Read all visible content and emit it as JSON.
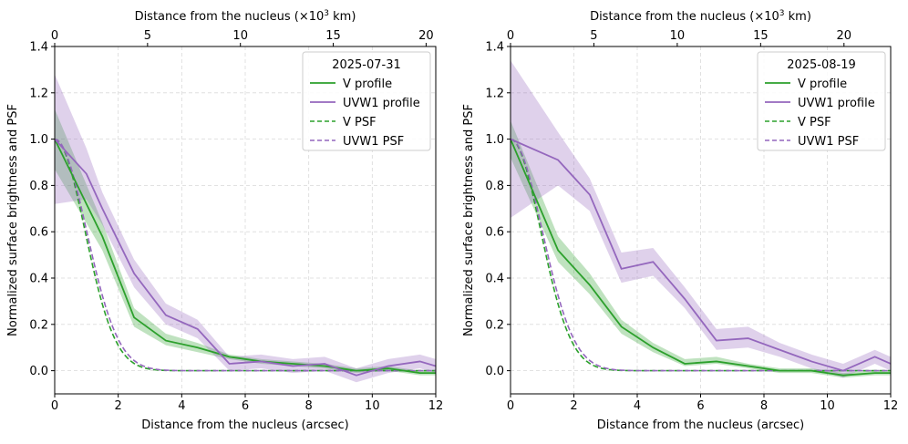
{
  "chart_data": [
    {
      "type": "line",
      "legend_title": "2025-07-31",
      "legend_position": "top-right",
      "xlabel": "Distance from the nucleus (arcsec)",
      "ylabel": "Normalized surface brightness and PSF",
      "top_xlabel_prefix": "Distance from the nucleus (×10",
      "top_xlabel_exp": "3",
      "top_xlabel_suffix": " km)",
      "xlim": [
        0,
        12
      ],
      "ylim": [
        -0.1,
        1.4
      ],
      "xticks": [
        0,
        2,
        4,
        6,
        8,
        10,
        12
      ],
      "yticks": [
        0.0,
        0.2,
        0.4,
        0.6,
        0.8,
        1.0,
        1.2,
        1.4
      ],
      "top_ticks_km": [
        0,
        5,
        10,
        15,
        20
      ],
      "km_per_arcsec": 1.71,
      "grid": true,
      "series": [
        {
          "name": "V profile",
          "style": "solid",
          "color": "#2ca02c",
          "x": [
            0,
            1.5,
            2.5,
            3.5,
            4.5,
            5.5,
            6.5,
            7.5,
            8.5,
            9.5,
            10.5,
            11.5,
            12
          ],
          "y": [
            1.0,
            0.58,
            0.23,
            0.13,
            0.1,
            0.06,
            0.04,
            0.03,
            0.02,
            0.0,
            0.01,
            -0.01,
            -0.01
          ],
          "lower": [
            0.87,
            0.52,
            0.19,
            0.11,
            0.08,
            0.05,
            0.03,
            0.02,
            0.01,
            -0.01,
            0.0,
            -0.02,
            -0.02
          ],
          "upper": [
            1.13,
            0.64,
            0.27,
            0.16,
            0.12,
            0.07,
            0.05,
            0.04,
            0.03,
            0.01,
            0.02,
            0.0,
            0.0
          ]
        },
        {
          "name": "UVW1 profile",
          "style": "solid",
          "color": "#9467bd",
          "x": [
            0,
            1.0,
            1.5,
            2.5,
            3.5,
            4.5,
            5.5,
            6.5,
            7.5,
            8.5,
            9.5,
            10.5,
            11.5,
            12
          ],
          "y": [
            1.0,
            0.85,
            0.7,
            0.42,
            0.24,
            0.18,
            0.03,
            0.04,
            0.02,
            0.03,
            -0.02,
            0.02,
            0.04,
            0.02
          ],
          "lower": [
            0.72,
            0.74,
            0.63,
            0.36,
            0.2,
            0.14,
            0.0,
            0.01,
            -0.01,
            0.0,
            -0.05,
            -0.01,
            0.01,
            -0.01
          ],
          "upper": [
            1.28,
            0.96,
            0.77,
            0.48,
            0.29,
            0.22,
            0.06,
            0.07,
            0.05,
            0.06,
            0.01,
            0.05,
            0.07,
            0.05
          ]
        },
        {
          "name": "V PSF",
          "style": "dashed",
          "color": "#2ca02c",
          "function": "gaussian",
          "sigma": 0.95
        },
        {
          "name": "UVW1 PSF",
          "style": "dashed",
          "color": "#9467bd",
          "function": "gaussian",
          "sigma": 1.0
        }
      ]
    },
    {
      "type": "line",
      "legend_title": "2025-08-19",
      "legend_position": "top-right",
      "xlabel": "Distance from the nucleus (arcsec)",
      "ylabel": "Normalized surface brightness and PSF",
      "top_xlabel_prefix": "Distance from the nucleus (×10",
      "top_xlabel_exp": "3",
      "top_xlabel_suffix": " km)",
      "xlim": [
        0,
        12
      ],
      "ylim": [
        -0.1,
        1.4
      ],
      "xticks": [
        0,
        2,
        4,
        6,
        8,
        10,
        12
      ],
      "yticks": [
        0.0,
        0.2,
        0.4,
        0.6,
        0.8,
        1.0,
        1.2,
        1.4
      ],
      "top_ticks_km": [
        0,
        5,
        10,
        15,
        20
      ],
      "km_per_arcsec": 1.9,
      "grid": true,
      "series": [
        {
          "name": "V profile",
          "style": "solid",
          "color": "#2ca02c",
          "x": [
            0,
            1.5,
            2.5,
            3.5,
            4.5,
            5.5,
            6.5,
            7.5,
            8.5,
            9.5,
            10.5,
            11.5,
            12
          ],
          "y": [
            1.0,
            0.52,
            0.37,
            0.19,
            0.1,
            0.03,
            0.04,
            0.02,
            0.0,
            0.0,
            -0.02,
            -0.01,
            -0.01
          ],
          "lower": [
            0.92,
            0.47,
            0.33,
            0.16,
            0.08,
            0.02,
            0.03,
            0.01,
            -0.01,
            -0.01,
            -0.03,
            -0.02,
            -0.02
          ],
          "upper": [
            1.08,
            0.58,
            0.42,
            0.22,
            0.12,
            0.05,
            0.06,
            0.03,
            0.01,
            0.01,
            -0.01,
            0.0,
            0.0
          ]
        },
        {
          "name": "UVW1 profile",
          "style": "solid",
          "color": "#9467bd",
          "x": [
            0,
            1.5,
            2.5,
            3.5,
            4.5,
            5.5,
            6.5,
            7.5,
            8.5,
            9.5,
            10.5,
            11.5,
            12
          ],
          "y": [
            1.0,
            0.91,
            0.76,
            0.44,
            0.47,
            0.31,
            0.13,
            0.14,
            0.09,
            0.04,
            0.0,
            0.06,
            0.03
          ],
          "lower": [
            0.66,
            0.8,
            0.69,
            0.38,
            0.41,
            0.27,
            0.09,
            0.1,
            0.06,
            0.01,
            -0.03,
            0.03,
            0.0
          ],
          "upper": [
            1.34,
            1.03,
            0.83,
            0.51,
            0.53,
            0.36,
            0.18,
            0.19,
            0.12,
            0.07,
            0.03,
            0.09,
            0.06
          ]
        },
        {
          "name": "V PSF",
          "style": "dashed",
          "color": "#2ca02c",
          "function": "gaussian",
          "sigma": 0.95
        },
        {
          "name": "UVW1 PSF",
          "style": "dashed",
          "color": "#9467bd",
          "function": "gaussian",
          "sigma": 1.0
        }
      ]
    }
  ]
}
